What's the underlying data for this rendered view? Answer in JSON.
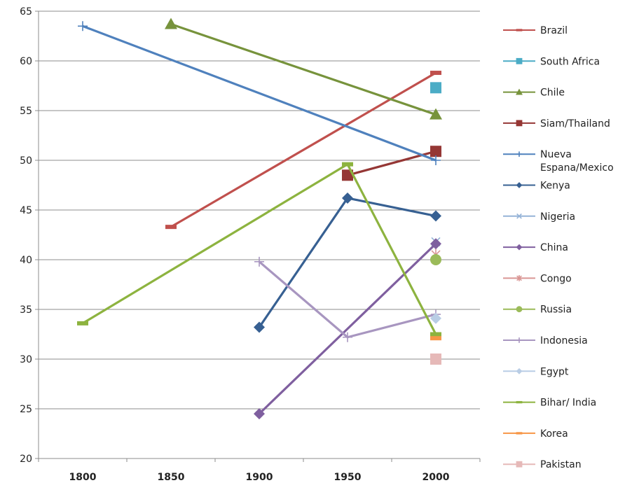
{
  "chart_data": {
    "type": "line",
    "title": "",
    "xlabel": "",
    "ylabel": "",
    "x_ticks": [
      1800,
      1850,
      1900,
      1950,
      2000
    ],
    "y_ticks": [
      20,
      25,
      30,
      35,
      40,
      45,
      50,
      55,
      60,
      65
    ],
    "xlim": [
      1775,
      2025
    ],
    "ylim": [
      20,
      65
    ],
    "grid": "horizontal",
    "legend_position": "right",
    "series": [
      {
        "name": "Brazil",
        "color": "#c0504d",
        "marker": "dash",
        "points": [
          [
            1850,
            43.3
          ],
          [
            2000,
            58.8
          ]
        ]
      },
      {
        "name": "South Africa",
        "color": "#4bacc6",
        "marker": "square",
        "points": [
          [
            2000,
            57.3
          ]
        ]
      },
      {
        "name": "Chile",
        "color": "#77933c",
        "marker": "triangle",
        "points": [
          [
            1850,
            63.7
          ],
          [
            2000,
            54.6
          ]
        ]
      },
      {
        "name": "Siam/Thailand",
        "color": "#953735",
        "marker": "square",
        "points": [
          [
            1950,
            48.5
          ],
          [
            2000,
            50.9
          ]
        ]
      },
      {
        "name": "Nueva Espana/Mexico",
        "color": "#4f81bd",
        "marker": "plus",
        "points": [
          [
            1800,
            63.5
          ],
          [
            2000,
            50.0
          ]
        ]
      },
      {
        "name": "Kenya",
        "color": "#376092",
        "marker": "diamond",
        "points": [
          [
            1900,
            33.2
          ],
          [
            1950,
            46.2
          ],
          [
            2000,
            44.4
          ]
        ]
      },
      {
        "name": "Nigeria",
        "color": "#95b3d7",
        "marker": "x",
        "points": [
          [
            2000,
            41.8
          ]
        ]
      },
      {
        "name": "China",
        "color": "#7f5f9f",
        "marker": "diamond",
        "points": [
          [
            1900,
            24.5
          ],
          [
            2000,
            41.6
          ]
        ]
      },
      {
        "name": "Congo",
        "color": "#d99694",
        "marker": "star",
        "points": [
          [
            2000,
            40.5
          ]
        ]
      },
      {
        "name": "Russia",
        "color": "#9bbb59",
        "marker": "circle",
        "points": [
          [
            2000,
            40.0
          ]
        ]
      },
      {
        "name": "Indonesia",
        "color": "#a896c0",
        "marker": "plus",
        "points": [
          [
            1900,
            39.8
          ],
          [
            1950,
            32.2
          ],
          [
            2000,
            34.5
          ]
        ]
      },
      {
        "name": "Egypt",
        "color": "#b9cde5",
        "marker": "diamond",
        "points": [
          [
            2000,
            34.1
          ]
        ]
      },
      {
        "name": "Bihar/ India",
        "color": "#8db33f",
        "marker": "dash",
        "points": [
          [
            1800,
            33.6
          ],
          [
            1950,
            49.6
          ],
          [
            2000,
            32.5
          ]
        ]
      },
      {
        "name": "Korea",
        "color": "#f79646",
        "marker": "dash",
        "points": [
          [
            2000,
            32.1
          ]
        ]
      },
      {
        "name": "Pakistan",
        "color": "#e6b9b8",
        "marker": "square",
        "points": [
          [
            2000,
            30.0
          ]
        ]
      }
    ]
  }
}
